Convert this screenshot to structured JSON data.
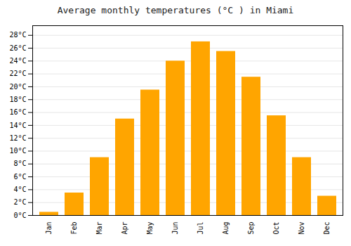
{
  "chart_data": {
    "type": "bar",
    "title": "Average monthly temperatures (°C ) in Miami",
    "categories": [
      "Jan",
      "Feb",
      "Mar",
      "Apr",
      "May",
      "Jun",
      "Jul",
      "Aug",
      "Sep",
      "Oct",
      "Nov",
      "Dec"
    ],
    "values": [
      0.5,
      3.5,
      9.0,
      15.0,
      19.5,
      24.0,
      27.0,
      25.5,
      21.5,
      15.5,
      9.0,
      3.0
    ],
    "color": "#FFA500",
    "ylim": [
      0,
      29.5
    ],
    "yticks": [
      {
        "value": 0,
        "label": "0°C"
      },
      {
        "value": 2,
        "label": "2°C"
      },
      {
        "value": 4,
        "label": "4°C"
      },
      {
        "value": 6,
        "label": "6°C"
      },
      {
        "value": 8,
        "label": "8°C"
      },
      {
        "value": 10,
        "label": "10°C"
      },
      {
        "value": 12,
        "label": "12°C"
      },
      {
        "value": 14,
        "label": "14°C"
      },
      {
        "value": 16,
        "label": "16°C"
      },
      {
        "value": 18,
        "label": "18°C"
      },
      {
        "value": 20,
        "label": "20°C"
      },
      {
        "value": 22,
        "label": "22°C"
      },
      {
        "value": 24,
        "label": "24°C"
      },
      {
        "value": 26,
        "label": "26°C"
      },
      {
        "value": 28,
        "label": "28°C"
      }
    ],
    "grid": true
  }
}
